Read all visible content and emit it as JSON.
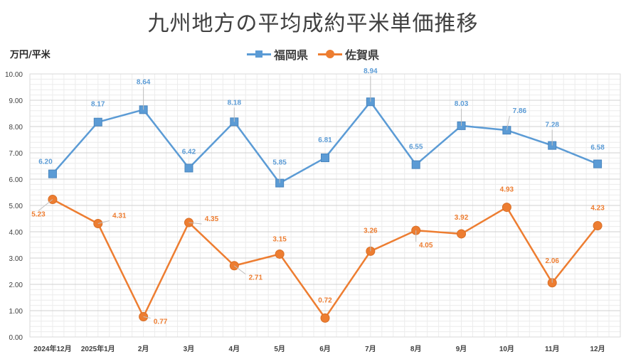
{
  "chart_data": {
    "type": "line",
    "title": "九州地方の平均成約平米単価推移",
    "ylabel": "万円/平米",
    "xlabel": "",
    "ylim": [
      0,
      10
    ],
    "yticks": [
      "0.00",
      "1.00",
      "2.00",
      "3.00",
      "4.00",
      "5.00",
      "6.00",
      "7.00",
      "8.00",
      "9.00",
      "10.00"
    ],
    "categories": [
      "2024年12月",
      "2025年1月",
      "2月",
      "3月",
      "4月",
      "5月",
      "6月",
      "7月",
      "8月",
      "9月",
      "10月",
      "11月",
      "12月"
    ],
    "legend_position": "top-center",
    "grid": true,
    "series": [
      {
        "name": "福岡県",
        "color": "#5b9bd5",
        "marker": "square",
        "values": [
          6.2,
          8.17,
          8.64,
          6.42,
          8.18,
          5.85,
          6.81,
          8.94,
          6.55,
          8.03,
          7.86,
          7.28,
          6.58
        ],
        "labels": [
          "6.20",
          "8.17",
          "8.64",
          "6.42",
          "8.18",
          "5.85",
          "6.81",
          "8.94",
          "6.55",
          "8.03",
          "7.86",
          "7.28",
          "6.58"
        ]
      },
      {
        "name": "佐賀県",
        "color": "#ed7d31",
        "marker": "circle",
        "values": [
          5.23,
          4.31,
          0.77,
          4.35,
          2.71,
          3.15,
          0.72,
          3.26,
          4.05,
          3.92,
          4.93,
          2.06,
          4.23
        ],
        "labels": [
          "5.23",
          "4.31",
          "0.77",
          "4.35",
          "2.71",
          "3.15",
          "0.72",
          "3.26",
          "4.05",
          "3.92",
          "4.93",
          "2.06",
          "4.23"
        ]
      }
    ]
  }
}
